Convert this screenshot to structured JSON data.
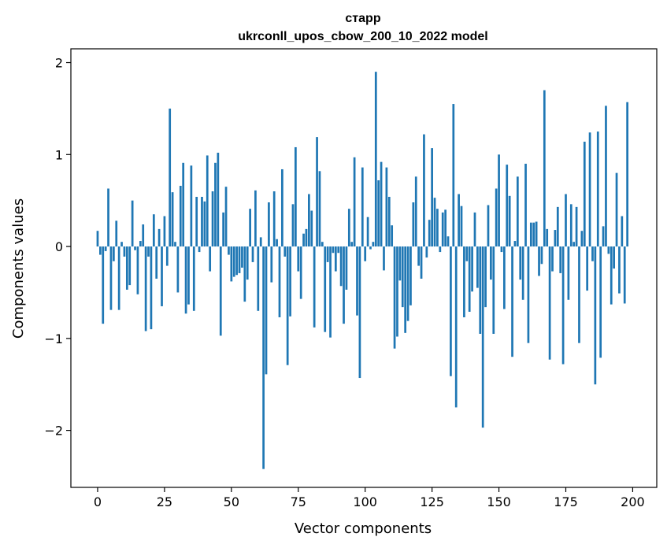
{
  "chart_data": {
    "type": "bar",
    "title_line1": "старр",
    "title_line2": "ukrconll_upos_cbow_200_10_2022 model",
    "xlabel": "Vector components",
    "ylabel": "Components values",
    "xlim": [
      -10,
      209
    ],
    "ylim": [
      -2.62,
      2.15
    ],
    "xticks": [
      0,
      25,
      50,
      75,
      100,
      125,
      150,
      175,
      200
    ],
    "yticks": [
      -2,
      -1,
      0,
      1,
      2
    ],
    "ytick_labels": [
      "−2",
      "−1",
      "0",
      "1",
      "2"
    ],
    "grid": false,
    "bar_color": "#1f77b4",
    "values": [
      0.17,
      -0.09,
      -0.84,
      -0.05,
      0.63,
      -0.69,
      -0.16,
      0.28,
      -0.69,
      0.05,
      -0.11,
      -0.47,
      -0.42,
      0.5,
      -0.04,
      -0.52,
      0.06,
      0.24,
      -0.92,
      -0.11,
      -0.9,
      0.35,
      -0.35,
      0.19,
      -0.65,
      0.33,
      -0.21,
      1.5,
      0.59,
      0.05,
      -0.5,
      0.66,
      0.91,
      -0.73,
      -0.63,
      0.88,
      -0.7,
      0.54,
      -0.06,
      0.54,
      0.49,
      0.99,
      -0.27,
      0.6,
      0.91,
      1.02,
      -0.97,
      0.37,
      0.65,
      -0.09,
      -0.38,
      -0.33,
      -0.31,
      -0.29,
      -0.23,
      -0.6,
      -0.36,
      0.41,
      -0.17,
      0.61,
      -0.7,
      0.1,
      -2.42,
      -1.39,
      0.48,
      -0.39,
      0.6,
      0.08,
      -0.77,
      0.84,
      -0.11,
      -1.29,
      -0.76,
      0.46,
      1.08,
      -0.27,
      -0.57,
      0.14,
      0.19,
      0.57,
      0.39,
      -0.88,
      1.19,
      0.82,
      0.05,
      -0.93,
      -0.17,
      -0.99,
      -0.07,
      -0.27,
      -0.07,
      -0.43,
      -0.84,
      -0.47,
      0.41,
      0.05,
      0.97,
      -0.75,
      -1.43,
      0.86,
      -0.16,
      0.32,
      -0.03,
      0.05,
      1.9,
      0.72,
      0.92,
      -0.26,
      0.86,
      0.54,
      0.23,
      -1.11,
      -0.98,
      -0.37,
      -0.66,
      -0.94,
      -0.81,
      -0.64,
      0.48,
      0.76,
      -0.21,
      -0.35,
      1.22,
      -0.12,
      0.29,
      1.07,
      0.53,
      0.41,
      -0.06,
      0.37,
      0.4,
      0.11,
      -1.41,
      1.55,
      -1.75,
      0.57,
      0.44,
      -0.77,
      -0.16,
      -0.71,
      -0.49,
      0.37,
      -0.45,
      -0.95,
      -1.97,
      -0.66,
      0.45,
      -0.36,
      -0.95,
      0.63,
      1.0,
      -0.06,
      -0.68,
      0.89,
      0.55,
      -1.2,
      0.06,
      0.76,
      -0.36,
      -0.58,
      0.9,
      -1.05,
      0.26,
      0.26,
      0.27,
      -0.32,
      -0.19,
      1.7,
      0.19,
      -1.23,
      -0.27,
      0.18,
      0.43,
      -0.29,
      -1.28,
      0.57,
      -0.58,
      0.46,
      0.05,
      0.43,
      -1.05,
      0.17,
      1.14,
      -0.48,
      1.24,
      -0.16,
      -1.5,
      1.25,
      -1.21,
      0.22,
      1.53,
      -0.08,
      -0.63,
      -0.24,
      0.8,
      -0.51,
      0.33,
      -0.62,
      1.57
    ]
  }
}
